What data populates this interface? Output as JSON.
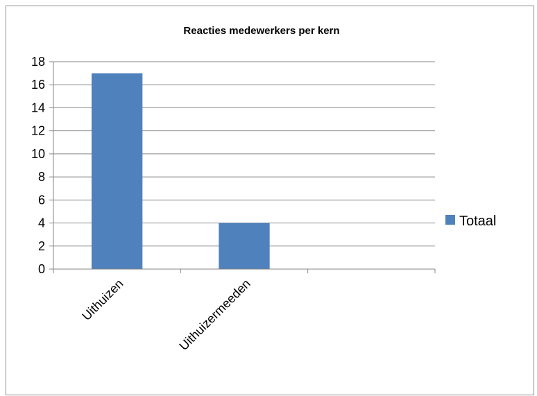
{
  "chart_data": {
    "type": "bar",
    "title": "Reacties medewerkers per kern",
    "categories": [
      "Uithuizen",
      "Uithuizermeeden",
      ""
    ],
    "series": [
      {
        "name": "Totaal",
        "values": [
          17,
          4,
          null
        ],
        "color": "#4f81bd"
      }
    ],
    "ylim": [
      0,
      18
    ],
    "yticks": [
      0,
      2,
      4,
      6,
      8,
      10,
      12,
      14,
      16,
      18
    ],
    "grid": true,
    "legend_position": "right"
  }
}
